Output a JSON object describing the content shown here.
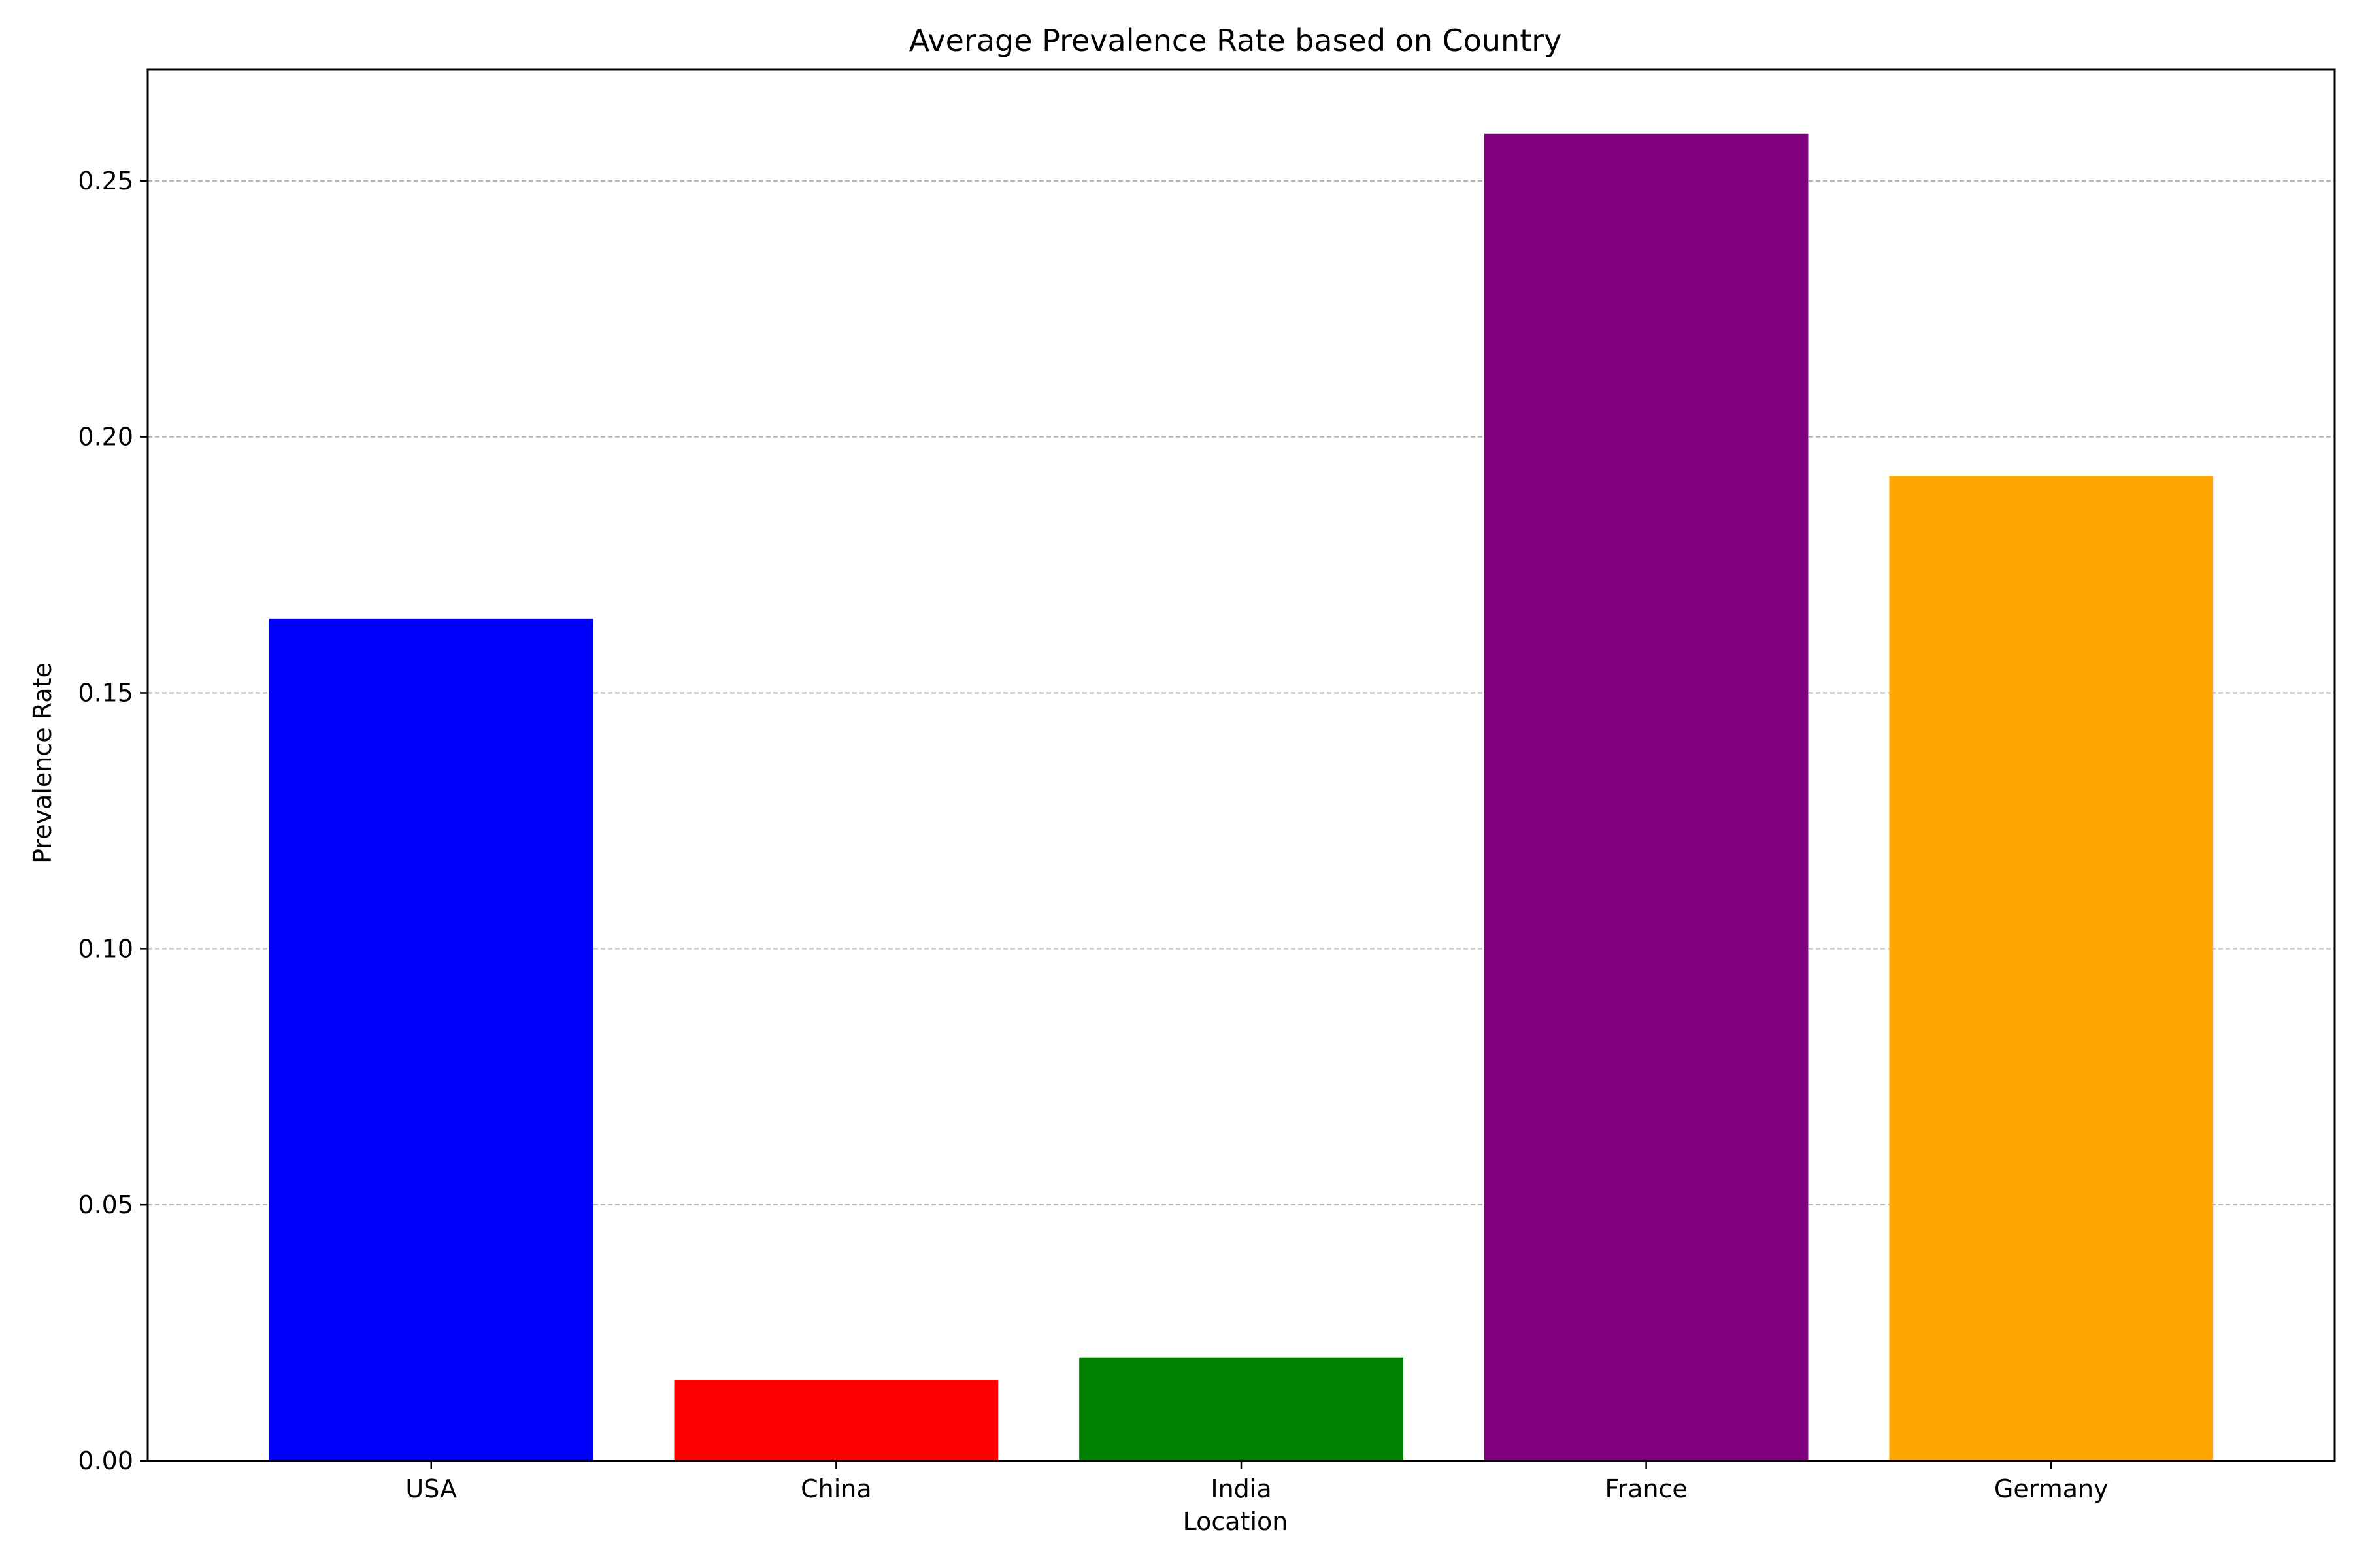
{
  "chart_data": {
    "type": "bar",
    "title": "Average Prevalence Rate based on Country",
    "xlabel": "Location",
    "ylabel": "Prevalence Rate",
    "categories": [
      "USA",
      "China",
      "India",
      "France",
      "Germany"
    ],
    "values": [
      0.1645,
      0.0158,
      0.0202,
      0.2592,
      0.1924
    ],
    "colors": [
      "#0000ff",
      "#ff0000",
      "#008000",
      "#800080",
      "#ffa500"
    ],
    "ylim": [
      0,
      0.2718
    ],
    "yticks": [
      0.0,
      0.05,
      0.1,
      0.15,
      0.2,
      0.25
    ],
    "ytick_labels": [
      "0.00",
      "0.05",
      "0.10",
      "0.15",
      "0.20",
      "0.25"
    ],
    "grid": {
      "axis": "y",
      "style": "dashed",
      "color": "#b0b0b0"
    },
    "legend": "none"
  }
}
